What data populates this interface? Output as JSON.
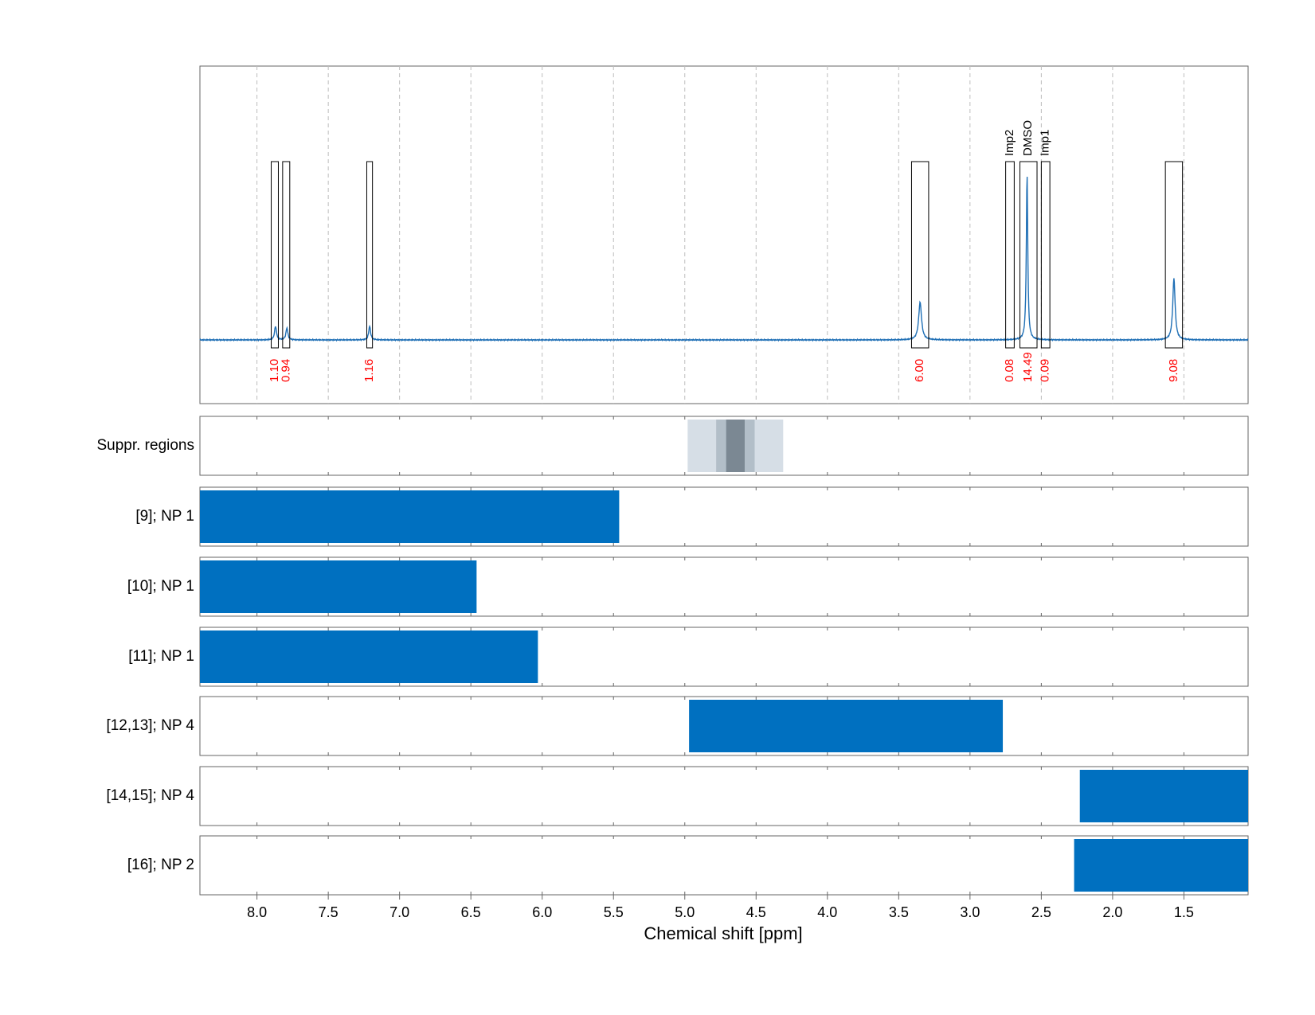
{
  "chart_data": {
    "type": "nmr-spectrum",
    "xlabel": "Chemical shift [ppm]",
    "xlim": [
      8.4,
      1.05
    ],
    "x_ticks": [
      8.0,
      7.5,
      7.0,
      6.5,
      6.0,
      5.5,
      5.0,
      4.5,
      4.0,
      3.5,
      3.0,
      2.5,
      2.0,
      1.5
    ],
    "x_tick_labels": [
      "8.0",
      "7.5",
      "7.0",
      "6.5",
      "6.0",
      "5.5",
      "5.0",
      "4.5",
      "4.0",
      "3.5",
      "3.0",
      "2.5",
      "2.0",
      "1.5"
    ],
    "colors": {
      "spectrum": "#1f6fb5",
      "bar": "#0070c0",
      "integral_text": "#ff0000"
    },
    "spectrum": {
      "baseline": 0.0,
      "peaks": [
        {
          "ppm": 7.87,
          "height": 0.08,
          "width": 0.008
        },
        {
          "ppm": 7.79,
          "height": 0.07,
          "width": 0.008
        },
        {
          "ppm": 7.21,
          "height": 0.08,
          "width": 0.008
        },
        {
          "ppm": 3.35,
          "height": 0.22,
          "width": 0.012
        },
        {
          "ppm": 2.6,
          "height": 0.97,
          "width": 0.006
        },
        {
          "ppm": 1.57,
          "height": 0.36,
          "width": 0.01
        }
      ]
    },
    "integrals": [
      {
        "from": 7.9,
        "to": 7.85,
        "value": "1.10"
      },
      {
        "from": 7.82,
        "to": 7.77,
        "value": "0.94"
      },
      {
        "from": 7.23,
        "to": 7.19,
        "value": "1.16"
      },
      {
        "from": 3.41,
        "to": 3.29,
        "value": "6.00"
      },
      {
        "from": 2.75,
        "to": 2.69,
        "value": "0.08",
        "name": "Imp2"
      },
      {
        "from": 2.65,
        "to": 2.53,
        "value": "14.49",
        "name": "DMSO"
      },
      {
        "from": 2.5,
        "to": 2.44,
        "value": "0.09",
        "name": "Imp1"
      },
      {
        "from": 1.63,
        "to": 1.51,
        "value": "9.08"
      }
    ],
    "suppressed_regions": [
      {
        "from": 4.98,
        "to": 4.31,
        "color": "#d6dee6"
      },
      {
        "from": 4.78,
        "to": 4.51,
        "color": "#b2bec8"
      },
      {
        "from": 4.71,
        "to": 4.58,
        "color": "#7b8893"
      }
    ],
    "rows": [
      {
        "label": "Suppr. regions",
        "from": null,
        "to": null
      },
      {
        "label": "[9]; NP 1",
        "from": 8.4,
        "to": 5.46
      },
      {
        "label": "[10]; NP 1",
        "from": 8.4,
        "to": 6.46
      },
      {
        "label": "[11]; NP 1",
        "from": 8.4,
        "to": 6.03
      },
      {
        "label": "[12,13]; NP 4",
        "from": 4.97,
        "to": 2.77
      },
      {
        "label": "[14,15]; NP 4",
        "from": 2.23,
        "to": 1.05
      },
      {
        "label": "[16]; NP 2",
        "from": 2.27,
        "to": 1.05
      }
    ]
  }
}
